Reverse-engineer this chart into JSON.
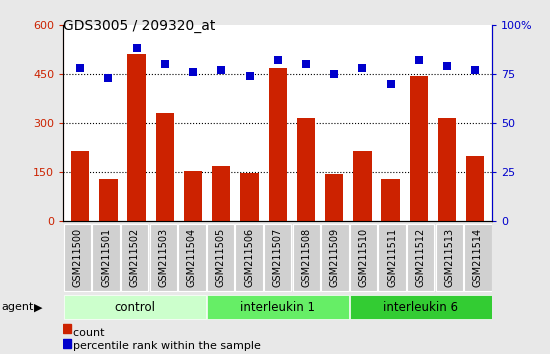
{
  "title": "GDS3005 / 209320_at",
  "samples": [
    "GSM211500",
    "GSM211501",
    "GSM211502",
    "GSM211503",
    "GSM211504",
    "GSM211505",
    "GSM211506",
    "GSM211507",
    "GSM211508",
    "GSM211509",
    "GSM211510",
    "GSM211511",
    "GSM211512",
    "GSM211513",
    "GSM211514"
  ],
  "counts": [
    215,
    130,
    510,
    330,
    153,
    170,
    148,
    468,
    315,
    143,
    215,
    128,
    445,
    315,
    200
  ],
  "percentiles": [
    78,
    73,
    88,
    80,
    76,
    77,
    74,
    82,
    80,
    75,
    78,
    70,
    82,
    79,
    77
  ],
  "groups": [
    {
      "label": "control",
      "start": 0,
      "end": 5,
      "color": "#ccffcc"
    },
    {
      "label": "interleukin 1",
      "start": 5,
      "end": 10,
      "color": "#66ee66"
    },
    {
      "label": "interleukin 6",
      "start": 10,
      "end": 15,
      "color": "#33cc33"
    }
  ],
  "bar_color": "#cc2200",
  "dot_color": "#0000cc",
  "left_ylim": [
    0,
    600
  ],
  "left_yticks": [
    0,
    150,
    300,
    450,
    600
  ],
  "right_ylim": [
    0,
    100
  ],
  "right_yticks": [
    0,
    25,
    50,
    75,
    100
  ],
  "right_yticklabels": [
    "0",
    "25",
    "50",
    "75",
    "100%"
  ],
  "grid_lines": [
    150,
    300,
    450
  ],
  "left_tick_color": "#cc2200",
  "right_tick_color": "#0000cc",
  "background_color": "#e8e8e8",
  "plot_bg_color": "#ffffff",
  "xtick_bg_color": "#d0d0d0",
  "legend_items": [
    {
      "label": "count",
      "color": "#cc2200"
    },
    {
      "label": "percentile rank within the sample",
      "color": "#0000cc"
    }
  ]
}
